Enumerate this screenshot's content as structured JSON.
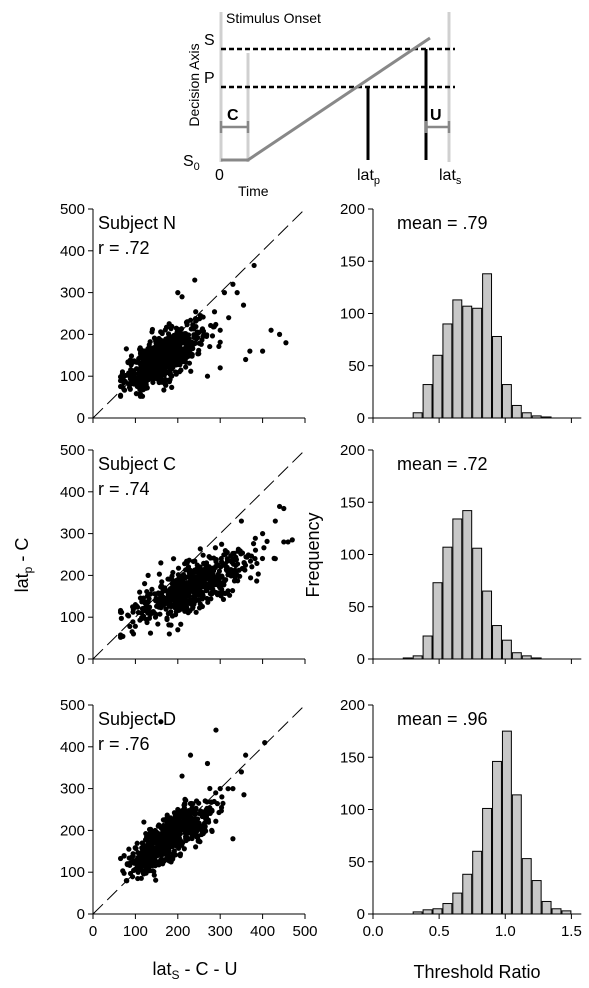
{
  "diagram": {
    "title": "Stimulus Onset",
    "ylabel": "Decision Axis",
    "xlabel": "Time",
    "level_s": "S",
    "level_p": "P",
    "level_0": "S",
    "level_0_sub": "0",
    "zero_label": "0",
    "c_label": "C",
    "u_label": "U",
    "latp": "lat",
    "latp_sub": "p",
    "lats": "lat",
    "lats_sub": "s"
  },
  "labels": {
    "scatter_ylabel_main": "lat",
    "scatter_ylabel_sub": "p",
    "scatter_ylabel_rest": " - C",
    "scatter_xlabel_main": "lat",
    "scatter_xlabel_sub": "S",
    "scatter_xlabel_rest": " - C - U",
    "hist_ylabel": "Frequency",
    "hist_xlabel": "Threshold Ratio"
  },
  "chart_data": [
    {
      "type": "scatter",
      "panel": "scatter-n",
      "subject": "Subject N",
      "r_text": "r = .72",
      "xlim": [
        0,
        500
      ],
      "ylim": [
        0,
        500
      ],
      "xticks": [
        "0",
        "100",
        "200",
        "300",
        "400",
        "500"
      ],
      "yticks": [
        "0",
        "100",
        "200",
        "300",
        "400",
        "500"
      ],
      "identity_line": true,
      "center": [
        165,
        145
      ],
      "spread": [
        45,
        40
      ],
      "corr": 0.72,
      "n": 720,
      "outliers": [
        [
          380,
          365
        ],
        [
          340,
          300
        ],
        [
          355,
          270
        ],
        [
          330,
          320
        ],
        [
          420,
          210
        ],
        [
          440,
          200
        ],
        [
          455,
          180
        ],
        [
          400,
          160
        ],
        [
          360,
          140
        ],
        [
          370,
          160
        ],
        [
          300,
          120
        ],
        [
          270,
          100
        ],
        [
          300,
          210
        ],
        [
          320,
          240
        ],
        [
          310,
          300
        ],
        [
          240,
          330
        ],
        [
          200,
          300
        ],
        [
          210,
          290
        ]
      ]
    },
    {
      "type": "bar",
      "panel": "hist-n",
      "mean_text": "mean = .79",
      "xlim": [
        0,
        1.55
      ],
      "ylim": [
        0,
        200
      ],
      "xticks": [
        "0.0",
        "0.5",
        "1.0",
        "1.5"
      ],
      "yticks": [
        "0",
        "50",
        "100",
        "150",
        "200"
      ],
      "bin_width": 0.075,
      "bin_starts": [
        0.225,
        0.3,
        0.375,
        0.45,
        0.525,
        0.6,
        0.675,
        0.75,
        0.825,
        0.9,
        0.975,
        1.05,
        1.125,
        1.2,
        1.275,
        1.35,
        1.425,
        1.5
      ],
      "values": [
        0,
        5,
        32,
        60,
        90,
        113,
        107,
        105,
        138,
        78,
        32,
        12,
        5,
        2,
        1,
        0,
        0,
        0
      ]
    },
    {
      "type": "scatter",
      "panel": "scatter-c",
      "subject": "Subject C",
      "r_text": "r = .74",
      "xlim": [
        0,
        500
      ],
      "ylim": [
        0,
        500
      ],
      "xticks": [
        "0",
        "100",
        "200",
        "300",
        "400",
        "500"
      ],
      "yticks": [
        "0",
        "100",
        "200",
        "300",
        "400",
        "500"
      ],
      "identity_line": true,
      "center": [
        230,
        170
      ],
      "spread": [
        65,
        40
      ],
      "corr": 0.74,
      "n": 600,
      "outliers": [
        [
          440,
          365
        ],
        [
          450,
          360
        ],
        [
          430,
          330
        ],
        [
          460,
          280
        ],
        [
          470,
          285
        ],
        [
          110,
          160
        ],
        [
          100,
          130
        ],
        [
          130,
          200
        ],
        [
          160,
          230
        ],
        [
          190,
          240
        ],
        [
          350,
          330
        ],
        [
          400,
          300
        ],
        [
          430,
          240
        ],
        [
          450,
          280
        ],
        [
          180,
          60
        ],
        [
          200,
          70
        ]
      ]
    },
    {
      "type": "bar",
      "panel": "hist-c",
      "mean_text": "mean = .72",
      "xlim": [
        0,
        1.55
      ],
      "ylim": [
        0,
        200
      ],
      "xticks": [
        "0.0",
        "0.5",
        "1.0",
        "1.5"
      ],
      "yticks": [
        "0",
        "50",
        "100",
        "150",
        "200"
      ],
      "bin_width": 0.075,
      "bin_starts": [
        0.225,
        0.3,
        0.375,
        0.45,
        0.525,
        0.6,
        0.675,
        0.75,
        0.825,
        0.9,
        0.975,
        1.05,
        1.125,
        1.2,
        1.275,
        1.35,
        1.425,
        1.5
      ],
      "values": [
        1,
        3,
        22,
        73,
        107,
        134,
        142,
        106,
        65,
        32,
        18,
        6,
        3,
        1,
        0,
        0,
        0,
        0
      ]
    },
    {
      "type": "scatter",
      "panel": "scatter-d",
      "subject": "Subject D",
      "r_text": "r = .76",
      "xlim": [
        0,
        500
      ],
      "ylim": [
        0,
        500
      ],
      "xticks": [
        "0",
        "100",
        "200",
        "300",
        "400",
        "500"
      ],
      "yticks": [
        "0",
        "100",
        "200",
        "300",
        "400",
        "500"
      ],
      "identity_line": true,
      "center": [
        180,
        180
      ],
      "spread": [
        45,
        40
      ],
      "corr": 0.76,
      "n": 620,
      "outliers": [
        [
          405,
          410
        ],
        [
          290,
          440
        ],
        [
          360,
          380
        ],
        [
          350,
          340
        ],
        [
          280,
          200
        ],
        [
          330,
          180
        ],
        [
          330,
          300
        ],
        [
          300,
          300
        ],
        [
          270,
          360
        ],
        [
          200,
          250
        ],
        [
          140,
          170
        ],
        [
          120,
          220
        ],
        [
          210,
          330
        ],
        [
          230,
          380
        ],
        [
          160,
          460
        ]
      ]
    },
    {
      "type": "bar",
      "panel": "hist-d",
      "mean_text": "mean = .96",
      "xlim": [
        0,
        1.55
      ],
      "ylim": [
        0,
        200
      ],
      "xticks": [
        "0.0",
        "0.5",
        "1.0",
        "1.5"
      ],
      "yticks": [
        "0",
        "50",
        "100",
        "150",
        "200"
      ],
      "bin_width": 0.075,
      "bin_starts": [
        0.225,
        0.3,
        0.375,
        0.45,
        0.525,
        0.6,
        0.675,
        0.75,
        0.825,
        0.9,
        0.975,
        1.05,
        1.125,
        1.2,
        1.275,
        1.35,
        1.425,
        1.5
      ],
      "values": [
        0,
        2,
        4,
        5,
        10,
        20,
        38,
        60,
        101,
        146,
        175,
        114,
        53,
        32,
        12,
        5,
        3,
        0
      ]
    }
  ]
}
